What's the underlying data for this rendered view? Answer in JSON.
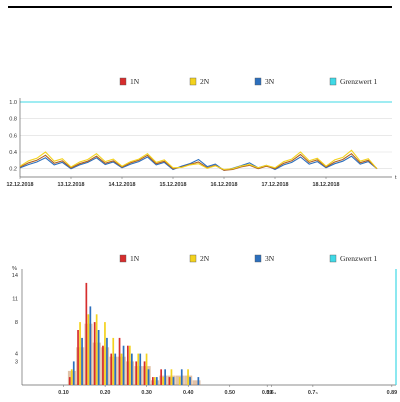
{
  "colors": {
    "1N": "#d62d2d",
    "2N": "#f3d21d",
    "3N": "#2c6fbd",
    "Grenzwert 1": "#3fd9e6",
    "band": "#c99060"
  },
  "chart_data": [
    {
      "type": "line",
      "legend": [
        "1N",
        "2N",
        "3N",
        "Grenzwert 1"
      ],
      "legend_position": "top",
      "x_tick_labels": [
        "12.12.2018",
        "13.12.2018",
        "14.12.2018",
        "15.12.2018",
        "16.12.2018",
        "17.12.2018",
        "18.12.2018"
      ],
      "x_axis_letter": "t",
      "y_ticks": [
        "0.2",
        "0.4",
        "0.6",
        "0.8",
        "1.0"
      ],
      "ylim": [
        0.1,
        1.0
      ],
      "grid": true,
      "threshold": {
        "name": "Grenzwert 1",
        "value": 1.0
      },
      "x_days": [
        0,
        0.5,
        1,
        1.5,
        2,
        2.5,
        3,
        3.5,
        4,
        4.5,
        5,
        5.5,
        6,
        6.5,
        7
      ],
      "series": [
        {
          "name": "1N",
          "values": [
            0.22,
            0.36,
            0.21,
            0.35,
            0.22,
            0.36,
            0.2,
            0.28,
            0.18,
            0.24,
            0.2,
            0.37,
            0.22,
            0.38,
            0.2
          ]
        },
        {
          "name": "2N",
          "values": [
            0.23,
            0.4,
            0.22,
            0.38,
            0.23,
            0.38,
            0.21,
            0.26,
            0.19,
            0.25,
            0.21,
            0.4,
            0.23,
            0.42,
            0.2
          ]
        },
        {
          "name": "3N",
          "values": [
            0.21,
            0.33,
            0.2,
            0.33,
            0.21,
            0.34,
            0.19,
            0.31,
            0.18,
            0.27,
            0.19,
            0.34,
            0.21,
            0.35,
            0.2
          ]
        }
      ]
    },
    {
      "type": "bar",
      "legend": [
        "1N",
        "2N",
        "3N",
        "Grenzwert 1"
      ],
      "legend_position": "top",
      "y_unit": "%",
      "y_ticks": [
        "3",
        "4",
        "8",
        "11",
        "14"
      ],
      "x_ticks": [
        "0.10",
        "0.20",
        "0.30",
        "0.40",
        "0.50",
        "0.59",
        "0.6₄",
        "0.7₅",
        "0.89"
      ],
      "xlim": [
        0.0,
        0.9
      ],
      "ylim": [
        0,
        14
      ],
      "bins": [
        0.12,
        0.14,
        0.16,
        0.18,
        0.2,
        0.22,
        0.24,
        0.26,
        0.28,
        0.3,
        0.32,
        0.34,
        0.36,
        0.38,
        0.4,
        0.42
      ],
      "series": [
        {
          "name": "1N",
          "values": [
            1,
            7,
            13,
            8,
            5,
            4,
            6,
            5,
            3,
            3,
            1,
            2,
            1,
            0,
            0,
            0
          ]
        },
        {
          "name": "2N",
          "values": [
            2,
            8,
            9,
            9,
            8,
            6,
            4,
            5,
            4,
            4,
            1,
            1,
            2,
            1,
            2,
            0
          ]
        },
        {
          "name": "3N",
          "values": [
            3,
            6,
            10,
            7,
            6,
            4,
            5,
            4,
            4,
            2,
            1,
            2,
            1,
            2,
            1,
            1
          ]
        }
      ]
    }
  ]
}
